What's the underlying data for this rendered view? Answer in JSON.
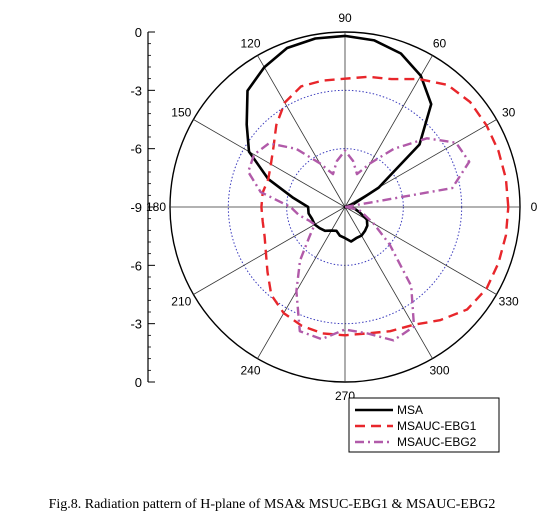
{
  "caption": "Fig.8. Radiation pattern of H-plane of MSA& MSUC-EBG1 & MSAUC-EBG2",
  "chart_data": {
    "type": "polar",
    "title": "",
    "angle_labels": [
      "90",
      "60",
      "30",
      "0",
      "330",
      "300",
      "270",
      "240",
      "210",
      "180",
      "150",
      "120"
    ],
    "angles_deg": [
      90,
      60,
      30,
      0,
      330,
      300,
      270,
      240,
      210,
      180,
      150,
      120
    ],
    "radial_axis": {
      "ticks": [
        0,
        -3,
        -6,
        -9
      ],
      "tick_labels": [
        "0",
        "-3",
        "-6",
        "-9",
        "-6",
        "-3",
        "0"
      ],
      "range": [
        -9,
        0
      ]
    },
    "legend_position": "bottom-right",
    "series": [
      {
        "name": "MSA",
        "color": "#000000",
        "style": "solid",
        "theta": [
          0,
          10,
          20,
          30,
          40,
          50,
          60,
          70,
          80,
          90,
          100,
          110,
          120,
          130,
          140,
          150,
          160,
          170,
          180,
          190,
          200,
          210,
          220,
          230,
          240,
          250,
          260,
          270,
          280,
          290,
          300,
          310,
          320,
          330,
          340,
          350
        ],
        "r": [
          -9,
          -9,
          -8.5,
          -7,
          -4,
          -2.1,
          -1.2,
          -0.6,
          -0.3,
          -0.2,
          -0.2,
          -0.3,
          -0.7,
          -1.2,
          -2.4,
          -3.3,
          -4.8,
          -6.3,
          -7.1,
          -7.1,
          -7.2,
          -7.2,
          -7.3,
          -7.4,
          -7.6,
          -7.7,
          -7.5,
          -7.4,
          -7.2,
          -7.3,
          -7.3,
          -7.4,
          -7.5,
          -7.7,
          -8.2,
          -8.5
        ]
      },
      {
        "name": "MSAUC-EBG1",
        "color": "#e8262b",
        "style": "dashed",
        "theta": [
          0,
          10,
          20,
          30,
          40,
          50,
          60,
          70,
          80,
          90,
          100,
          110,
          120,
          130,
          140,
          150,
          160,
          170,
          180,
          190,
          200,
          210,
          220,
          230,
          240,
          250,
          260,
          270,
          280,
          290,
          300,
          310,
          320,
          330,
          340,
          350
        ],
        "r": [
          -0.6,
          -0.6,
          -0.6,
          -0.6,
          -0.6,
          -0.8,
          -1.4,
          -2.0,
          -2.2,
          -2.4,
          -2.4,
          -2.4,
          -2.8,
          -3.5,
          -4.2,
          -4.6,
          -4.8,
          -4.7,
          -4.7,
          -4.7,
          -4.6,
          -4.3,
          -3.8,
          -3.1,
          -2.7,
          -2.5,
          -2.4,
          -2.4,
          -2.4,
          -2.2,
          -2.0,
          -1.4,
          -0.8,
          -0.6,
          -0.6,
          -0.6
        ]
      },
      {
        "name": "MSAUC-EBG2",
        "color": "#b15aa9",
        "style": "dashdot",
        "theta": [
          0,
          10,
          20,
          30,
          40,
          50,
          60,
          70,
          80,
          90,
          100,
          110,
          120,
          130,
          140,
          150,
          160,
          170,
          180,
          190,
          200,
          210,
          220,
          230,
          240,
          250,
          260,
          270,
          280,
          290,
          300,
          310,
          320,
          330,
          340,
          350
        ],
        "r": [
          -9,
          -3.4,
          -2.2,
          -2.4,
          -3.5,
          -5.1,
          -6.4,
          -7.2,
          -6.6,
          -6.1,
          -6.6,
          -7.2,
          -6.4,
          -5.1,
          -3.9,
          -3.6,
          -3.7,
          -4.6,
          -6.2,
          -6.6,
          -7.0,
          -7.2,
          -6.6,
          -5.4,
          -4.0,
          -2.2,
          -2.1,
          -2.7,
          -2.4,
          -1.7,
          -1.9,
          -3.7,
          -6.0,
          -7.3,
          -8.0,
          -8.3
        ]
      }
    ]
  }
}
